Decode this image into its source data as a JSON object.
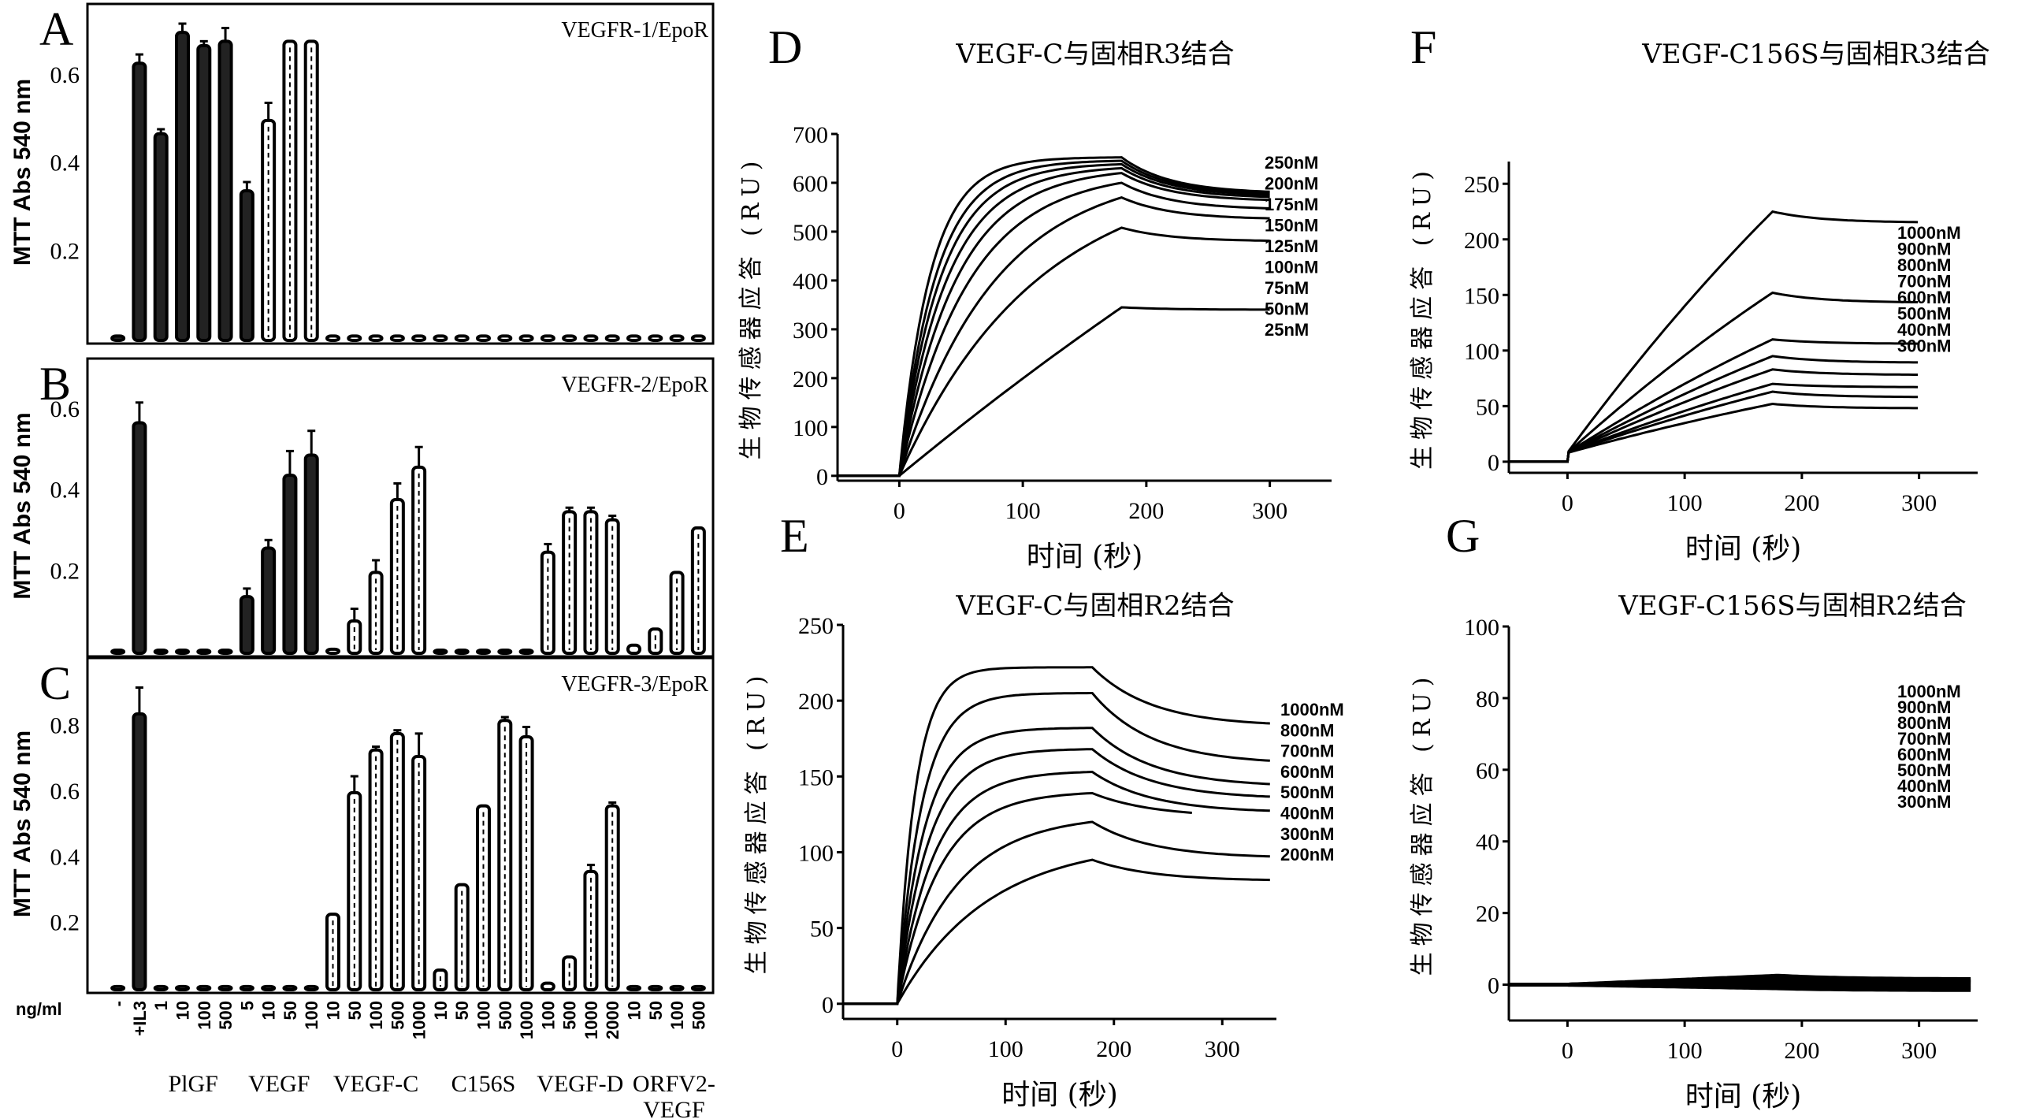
{
  "chart_data": [
    {
      "panel": "A",
      "type": "bar",
      "title": "VEGFR-1/EpoR",
      "ylabel": "MTT Abs 540 nm",
      "ylim": [
        0,
        0.72
      ],
      "yticks": [
        "0.2",
        "0.4",
        "0.6"
      ],
      "unit_label": "ng/ml",
      "categories": [
        "-",
        "+IL3",
        "1",
        "10",
        "100",
        "500",
        "5",
        "10",
        "50",
        "100",
        "10",
        "50",
        "100",
        "500",
        "1000",
        "10",
        "50",
        "100",
        "500",
        "1000",
        "100",
        "500",
        "1000",
        "2000",
        "10",
        "50",
        "100",
        "500"
      ],
      "groups": [
        {
          "name": "PlGF",
          "from": 2,
          "to": 5
        },
        {
          "name": "VEGF",
          "from": 6,
          "to": 9
        },
        {
          "name": "VEGF-C",
          "from": 10,
          "to": 14
        },
        {
          "name": "C156S",
          "from": 15,
          "to": 19
        },
        {
          "name": "VEGF-D",
          "from": 20,
          "to": 23
        },
        {
          "name": "ORFV2-VEGF",
          "from": 24,
          "to": 27
        }
      ],
      "values": [
        0.01,
        0.63,
        0.47,
        0.7,
        0.67,
        0.68,
        0.34,
        0.5,
        0.68,
        0.68,
        0.01,
        0.01,
        0.01,
        0.01,
        0.01,
        0.01,
        0.01,
        0.01,
        0.01,
        0.01,
        0.01,
        0.01,
        0.01,
        0.01,
        0.01,
        0.01,
        0.01,
        0.01
      ],
      "errors": [
        0,
        0.02,
        0.01,
        0.02,
        0.01,
        0.03,
        0.02,
        0.04,
        0.0,
        0.0,
        0,
        0,
        0,
        0,
        0,
        0,
        0,
        0,
        0,
        0,
        0,
        0,
        0,
        0,
        0,
        0,
        0,
        0
      ]
    },
    {
      "panel": "B",
      "type": "bar",
      "title": "VEGFR-2/EpoR",
      "ylabel": "MTT Abs 540 nm",
      "ylim": [
        0,
        0.68
      ],
      "yticks": [
        "0.2",
        "0.4",
        "0.6"
      ],
      "values": [
        0.0,
        0.57,
        0.0,
        0.0,
        0.0,
        0.0,
        0.14,
        0.26,
        0.44,
        0.49,
        0.01,
        0.08,
        0.2,
        0.38,
        0.46,
        0.0,
        0.0,
        0.0,
        0.0,
        0.0,
        0.25,
        0.35,
        0.35,
        0.33,
        0.02,
        0.06,
        0.2,
        0.31
      ],
      "errors": [
        0,
        0.05,
        0,
        0,
        0,
        0,
        0.02,
        0.02,
        0.06,
        0.06,
        0,
        0.03,
        0.03,
        0.04,
        0.05,
        0,
        0,
        0,
        0,
        0,
        0.02,
        0.01,
        0.01,
        0.01,
        0,
        0,
        0,
        0
      ]
    },
    {
      "panel": "C",
      "type": "bar",
      "title": "VEGFR-3/EpoR",
      "ylabel": "MTT Abs 540 nm",
      "ylim": [
        0,
        0.95
      ],
      "yticks": [
        "0.2",
        "0.4",
        "0.6",
        "0.8"
      ],
      "values": [
        0.01,
        0.84,
        0.01,
        0.01,
        0.01,
        0.01,
        0.01,
        0.01,
        0.01,
        0.01,
        0.23,
        0.6,
        0.73,
        0.78,
        0.71,
        0.06,
        0.32,
        0.56,
        0.82,
        0.77,
        0.02,
        0.1,
        0.36,
        0.56,
        0.01,
        0.01,
        0.01,
        0.01
      ],
      "errors": [
        0,
        0.08,
        0,
        0,
        0,
        0,
        0,
        0,
        0,
        0,
        0,
        0.05,
        0.01,
        0.01,
        0.07,
        0,
        0,
        0,
        0.01,
        0.03,
        0,
        0,
        0.02,
        0.01,
        0,
        0,
        0,
        0
      ]
    },
    {
      "panel": "D",
      "type": "line",
      "title": "VEGF-C与固相R3结合",
      "xlabel": "时间 (秒)",
      "ylabel": "生物传感器应答 (RU)",
      "xlim": [
        -50,
        350
      ],
      "ylim": [
        -10,
        700
      ],
      "xticks": [
        "0",
        "100",
        "200",
        "300"
      ],
      "yticks": [
        "0",
        "100",
        "200",
        "300",
        "400",
        "500",
        "600",
        "700"
      ],
      "legend": [
        "250nM",
        "200nM",
        "175nM",
        "150nM",
        "125nM",
        "100nM",
        "75nM",
        "50nM",
        "25nM"
      ],
      "series": [
        {
          "name": "250nM",
          "peak": 652,
          "end": 578,
          "k": 0.04
        },
        {
          "name": "200nM",
          "peak": 645,
          "end": 575,
          "k": 0.034
        },
        {
          "name": "175nM",
          "peak": 638,
          "end": 572,
          "k": 0.03
        },
        {
          "name": "150nM",
          "peak": 630,
          "end": 568,
          "k": 0.026
        },
        {
          "name": "125nM",
          "peak": 620,
          "end": 562,
          "k": 0.022
        },
        {
          "name": "100nM",
          "peak": 600,
          "end": 545,
          "k": 0.018
        },
        {
          "name": "75nM",
          "peak": 570,
          "end": 525,
          "k": 0.013
        },
        {
          "name": "50nM",
          "peak": 508,
          "end": 480,
          "k": 0.009
        },
        {
          "name": "25nM",
          "peak": 345,
          "end": 340,
          "k": 0.001
        }
      ]
    },
    {
      "panel": "E",
      "type": "line",
      "title": "VEGF-C与固相R2结合",
      "xlabel": "时间 (秒)",
      "ylabel": "生物传感器应答 (RU)",
      "xlim": [
        -50,
        350
      ],
      "ylim": [
        -10,
        250
      ],
      "xticks": [
        "0",
        "100",
        "200",
        "300"
      ],
      "yticks": [
        "0",
        "50",
        "100",
        "150",
        "200",
        "250"
      ],
      "legend": [
        "1000nM",
        "800nM",
        "700nM",
        "600nM",
        "500nM",
        "400nM",
        "300nM",
        "200nM"
      ],
      "series": [
        {
          "name": "1000nM",
          "peak": 222,
          "end": 183,
          "k": 0.06
        },
        {
          "name": "800nM",
          "peak": 205,
          "end": 158,
          "k": 0.045
        },
        {
          "name": "700nM",
          "peak": 182,
          "end": 143,
          "k": 0.04
        },
        {
          "name": "600nM",
          "peak": 168,
          "end": 135,
          "k": 0.035
        },
        {
          "name": "500nM",
          "peak": 153,
          "end": 126,
          "k": 0.03
        },
        {
          "name": "400nM",
          "peak": 139,
          "end": 123,
          "k": 0.026,
          "stop": 275
        },
        {
          "name": "300nM",
          "peak": 120,
          "end": 96,
          "k": 0.018
        },
        {
          "name": "200nM",
          "peak": 95,
          "end": 81,
          "k": 0.012
        }
      ]
    },
    {
      "panel": "F",
      "type": "line",
      "title": "VEGF-C156S与固相R3结合",
      "xlabel": "时间 (秒)",
      "ylabel": "生物传感器应答 (RU)",
      "xlim": [
        -50,
        350
      ],
      "ylim": [
        -10,
        270
      ],
      "xticks": [
        "0",
        "100",
        "200",
        "300"
      ],
      "yticks": [
        "0",
        "50",
        "100",
        "150",
        "200",
        "250"
      ],
      "legend": [
        "1000nM",
        "900nM",
        "800nM",
        "700nM",
        "600nM",
        "500nM",
        "400nM",
        "300nM"
      ],
      "series": [
        {
          "name": "1000nM",
          "peak": 225,
          "end": 215
        },
        {
          "name": "900nM",
          "peak": 152,
          "end": 143
        },
        {
          "name": "800nM",
          "peak": 110,
          "end": 106
        },
        {
          "name": "700nM",
          "peak": 95,
          "end": 89
        },
        {
          "name": "600nM",
          "peak": 83,
          "end": 78
        },
        {
          "name": "500nM",
          "peak": 70,
          "end": 67
        },
        {
          "name": "400nM",
          "peak": 63,
          "end": 58
        },
        {
          "name": "300nM",
          "peak": 52,
          "end": 48
        }
      ]
    },
    {
      "panel": "G",
      "type": "line",
      "title": "VEGF-C156S与固相R2结合",
      "xlabel": "时间 (秒)",
      "ylabel": "生物传感器应答 (RU)",
      "xlim": [
        -50,
        350
      ],
      "ylim": [
        -10,
        100
      ],
      "xticks": [
        "0",
        "100",
        "200",
        "300"
      ],
      "yticks": [
        "0",
        "20",
        "40",
        "60",
        "80",
        "100"
      ],
      "legend": [
        "1000nM",
        "900nM",
        "800nM",
        "700nM",
        "600nM",
        "500nM",
        "400nM",
        "300nM"
      ],
      "series": [
        {
          "name": "1000nM",
          "peak": 2.5,
          "end": 1.5
        },
        {
          "name": "900nM",
          "peak": 2.0,
          "end": 1.2
        },
        {
          "name": "800nM",
          "peak": 1.5,
          "end": 0.8
        },
        {
          "name": "700nM",
          "peak": 1.0,
          "end": 0.5
        },
        {
          "name": "600nM",
          "peak": 0.5,
          "end": 0.0
        },
        {
          "name": "500nM",
          "peak": 0.0,
          "end": -0.5
        },
        {
          "name": "400nM",
          "peak": -0.5,
          "end": -1.0
        },
        {
          "name": "300nM",
          "peak": -1.0,
          "end": -1.5
        }
      ]
    }
  ],
  "bar_x_groups_label_row2": "VEGF"
}
